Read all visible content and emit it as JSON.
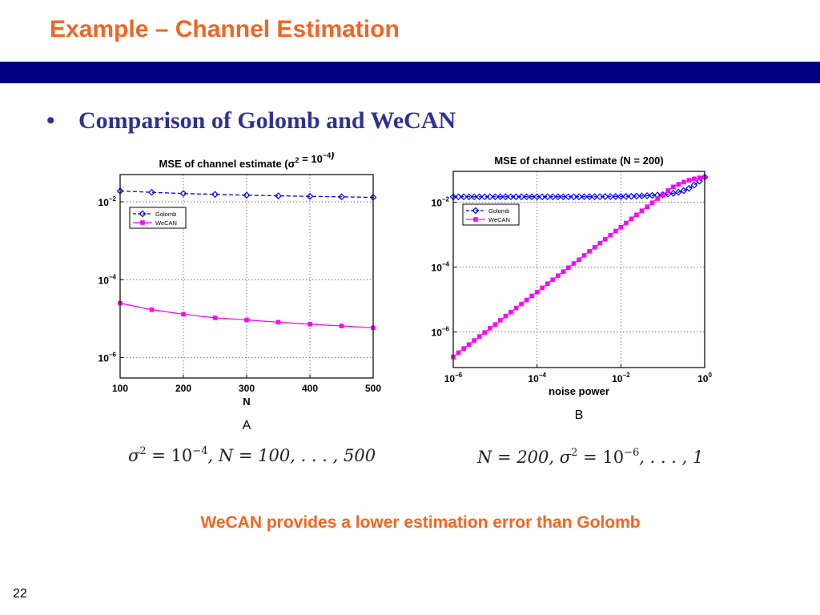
{
  "slide": {
    "title": "Example – Channel Estimation",
    "bullet_marker": "•",
    "bullet": "Comparison of Golomb and WeCAN",
    "conclusion": "WeCAN provides a lower estimation error than Golomb",
    "page_number": "22",
    "colors": {
      "title": "#f26522",
      "band": "#000080",
      "bullet": "#2e3192",
      "golomb": "#0000ff",
      "wecan": "#ff00ff"
    }
  },
  "formulas": {
    "a": {
      "sigma": "σ",
      "sq": "2",
      "eq": " = 10",
      "exp": "−4",
      "rest": ", N = 100, . . . , 500"
    },
    "b": {
      "pre": "N = 200, ",
      "sigma": "σ",
      "sq": "2",
      "eq": " = 10",
      "exp": "−6",
      "rest": ", . . . , 1"
    }
  },
  "chart_data": [
    {
      "type": "line",
      "title": "MSE of channel estimate (σ² = 10⁻⁴)",
      "xlabel": "N",
      "ylabel": "",
      "caption": "A",
      "x_scale": "linear",
      "y_scale": "log",
      "xlim": [
        100,
        500
      ],
      "ylim": [
        3e-07,
        0.05
      ],
      "xticks": [
        100,
        200,
        300,
        400,
        500
      ],
      "xtick_labels": [
        "100",
        "200",
        "300",
        "400",
        "500"
      ],
      "yticks": [
        1e-06,
        0.0001,
        0.01
      ],
      "ytick_labels": [
        {
          "base": "10",
          "exp": "−6"
        },
        {
          "base": "10",
          "exp": "−4"
        },
        {
          "base": "10",
          "exp": "−2"
        }
      ],
      "grid": true,
      "legend_position": "top-left",
      "x": [
        100,
        150,
        200,
        250,
        300,
        350,
        400,
        450,
        500
      ],
      "series": [
        {
          "name": "Golomb",
          "color": "#0000ff",
          "dash": true,
          "marker": "diamond",
          "values": [
            0.019,
            0.0175,
            0.0163,
            0.0155,
            0.0148,
            0.0142,
            0.0138,
            0.0134,
            0.013
          ]
        },
        {
          "name": "WeCAN",
          "color": "#ff00ff",
          "dash": false,
          "marker": "square",
          "values": [
            2.5e-05,
            1.7e-05,
            1.3e-05,
            1.05e-05,
            9.3e-06,
            8.1e-06,
            7.2e-06,
            6.5e-06,
            5.8e-06
          ]
        }
      ]
    },
    {
      "type": "line",
      "title": "MSE of channel estimate (N = 200)",
      "xlabel": "noise power",
      "ylabel": "",
      "caption": "B",
      "x_scale": "log",
      "y_scale": "log",
      "xlim": [
        1e-06,
        1
      ],
      "ylim": [
        8e-08,
        0.09
      ],
      "xticks": [
        1e-06,
        0.0001,
        0.01,
        1
      ],
      "xtick_labels": [
        {
          "base": "10",
          "exp": "−6"
        },
        {
          "base": "10",
          "exp": "−4"
        },
        {
          "base": "10",
          "exp": "−2"
        },
        {
          "base": "10",
          "exp": "0"
        }
      ],
      "yticks": [
        1e-06,
        0.0001,
        0.01
      ],
      "ytick_labels": [
        {
          "base": "10",
          "exp": "−6"
        },
        {
          "base": "10",
          "exp": "−4"
        },
        {
          "base": "10",
          "exp": "−2"
        }
      ],
      "grid": true,
      "legend_position": "top-left",
      "x": [
        1e-06,
        1.33e-06,
        1.78e-06,
        2.37e-06,
        3.16e-06,
        4.22e-06,
        5.62e-06,
        7.5e-06,
        1e-05,
        1.33e-05,
        1.78e-05,
        2.37e-05,
        3.16e-05,
        4.22e-05,
        5.62e-05,
        7.5e-05,
        0.0001,
        0.000133,
        0.000178,
        0.000237,
        0.000316,
        0.000422,
        0.000562,
        0.00075,
        0.001,
        0.00133,
        0.00178,
        0.00237,
        0.00316,
        0.00422,
        0.00562,
        0.0075,
        0.01,
        0.0133,
        0.0178,
        0.0237,
        0.0316,
        0.0422,
        0.0562,
        0.075,
        0.1,
        0.133,
        0.178,
        0.237,
        0.316,
        0.422,
        0.562,
        0.75,
        1
      ],
      "series": [
        {
          "name": "Golomb",
          "color": "#0000ff",
          "dash": true,
          "marker": "diamond",
          "values": [
            0.0148,
            0.0148,
            0.0148,
            0.0148,
            0.0148,
            0.0148,
            0.0148,
            0.0148,
            0.0148,
            0.0148,
            0.0148,
            0.0148,
            0.0148,
            0.0148,
            0.0148,
            0.0148,
            0.0148,
            0.0148,
            0.0148,
            0.0148,
            0.0148,
            0.0148,
            0.0148,
            0.0148,
            0.0148,
            0.0149,
            0.0149,
            0.0149,
            0.0149,
            0.015,
            0.015,
            0.0151,
            0.0151,
            0.0152,
            0.0153,
            0.0155,
            0.0157,
            0.016,
            0.0163,
            0.0167,
            0.0172,
            0.018,
            0.019,
            0.0205,
            0.023,
            0.027,
            0.034,
            0.045,
            0.06
          ]
        },
        {
          "name": "WeCAN",
          "color": "#ff00ff",
          "dash": false,
          "marker": "square",
          "values": [
            1.7e-07,
            2.3e-07,
            3.1e-07,
            4.1e-07,
            5.5e-07,
            7.3e-07,
            9.7e-07,
            1.3e-06,
            1.7e-06,
            2.3e-06,
            3.1e-06,
            4.1e-06,
            5.5e-06,
            7.3e-06,
            9.7e-06,
            1.3e-05,
            1.7e-05,
            2.3e-05,
            3.1e-05,
            4.1e-05,
            5.5e-05,
            7.3e-05,
            9.7e-05,
            0.00013,
            0.00017,
            0.00023,
            0.00031,
            0.00041,
            0.00055,
            0.00073,
            0.00097,
            0.0013,
            0.0017,
            0.0023,
            0.0031,
            0.0041,
            0.0055,
            0.0073,
            0.0097,
            0.013,
            0.017,
            0.023,
            0.03,
            0.036,
            0.042,
            0.048,
            0.053,
            0.057,
            0.06
          ]
        }
      ]
    }
  ]
}
